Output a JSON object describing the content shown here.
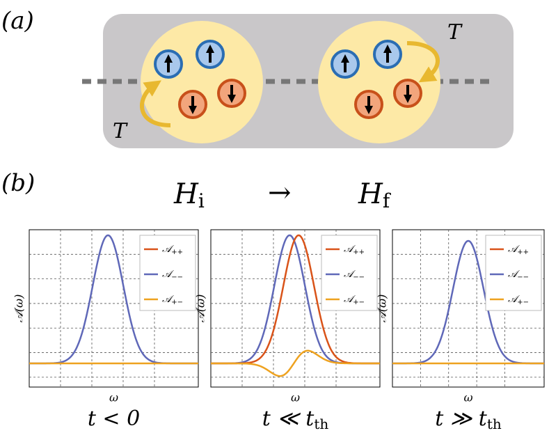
{
  "panel_a": {
    "label": "(a)",
    "couplings": [
      "T",
      "T"
    ]
  },
  "panel_b": {
    "label": "(b)",
    "transition": {
      "initial": {
        "symbol": "H",
        "subscript": "i"
      },
      "arrow": "→",
      "final": {
        "symbol": "H",
        "subscript": "f"
      }
    },
    "plots": [
      {
        "ylabel": "𝒜(ω)",
        "xlabel": "ω",
        "title": {
          "main": "t < 0"
        },
        "legend": [
          {
            "symbol": "𝒜",
            "sub": "++"
          },
          {
            "symbol": "𝒜",
            "sub": "−−"
          },
          {
            "symbol": "𝒜",
            "sub": "+−"
          }
        ]
      },
      {
        "ylabel": "𝒜(ω)",
        "xlabel": "ω",
        "title": {
          "main": "t ≪ t",
          "sub": "th"
        },
        "legend": [
          {
            "symbol": "𝒜",
            "sub": "++"
          },
          {
            "symbol": "𝒜",
            "sub": "−−"
          },
          {
            "symbol": "𝒜",
            "sub": "+−"
          }
        ]
      },
      {
        "ylabel": "𝒜(ω)",
        "xlabel": "ω",
        "title": {
          "main": "t ≫ t",
          "sub": "th"
        },
        "legend": [
          {
            "symbol": "𝒜",
            "sub": "++"
          },
          {
            "symbol": "𝒜",
            "sub": "−−"
          },
          {
            "symbol": "𝒜",
            "sub": "+−"
          }
        ]
      }
    ]
  }
}
